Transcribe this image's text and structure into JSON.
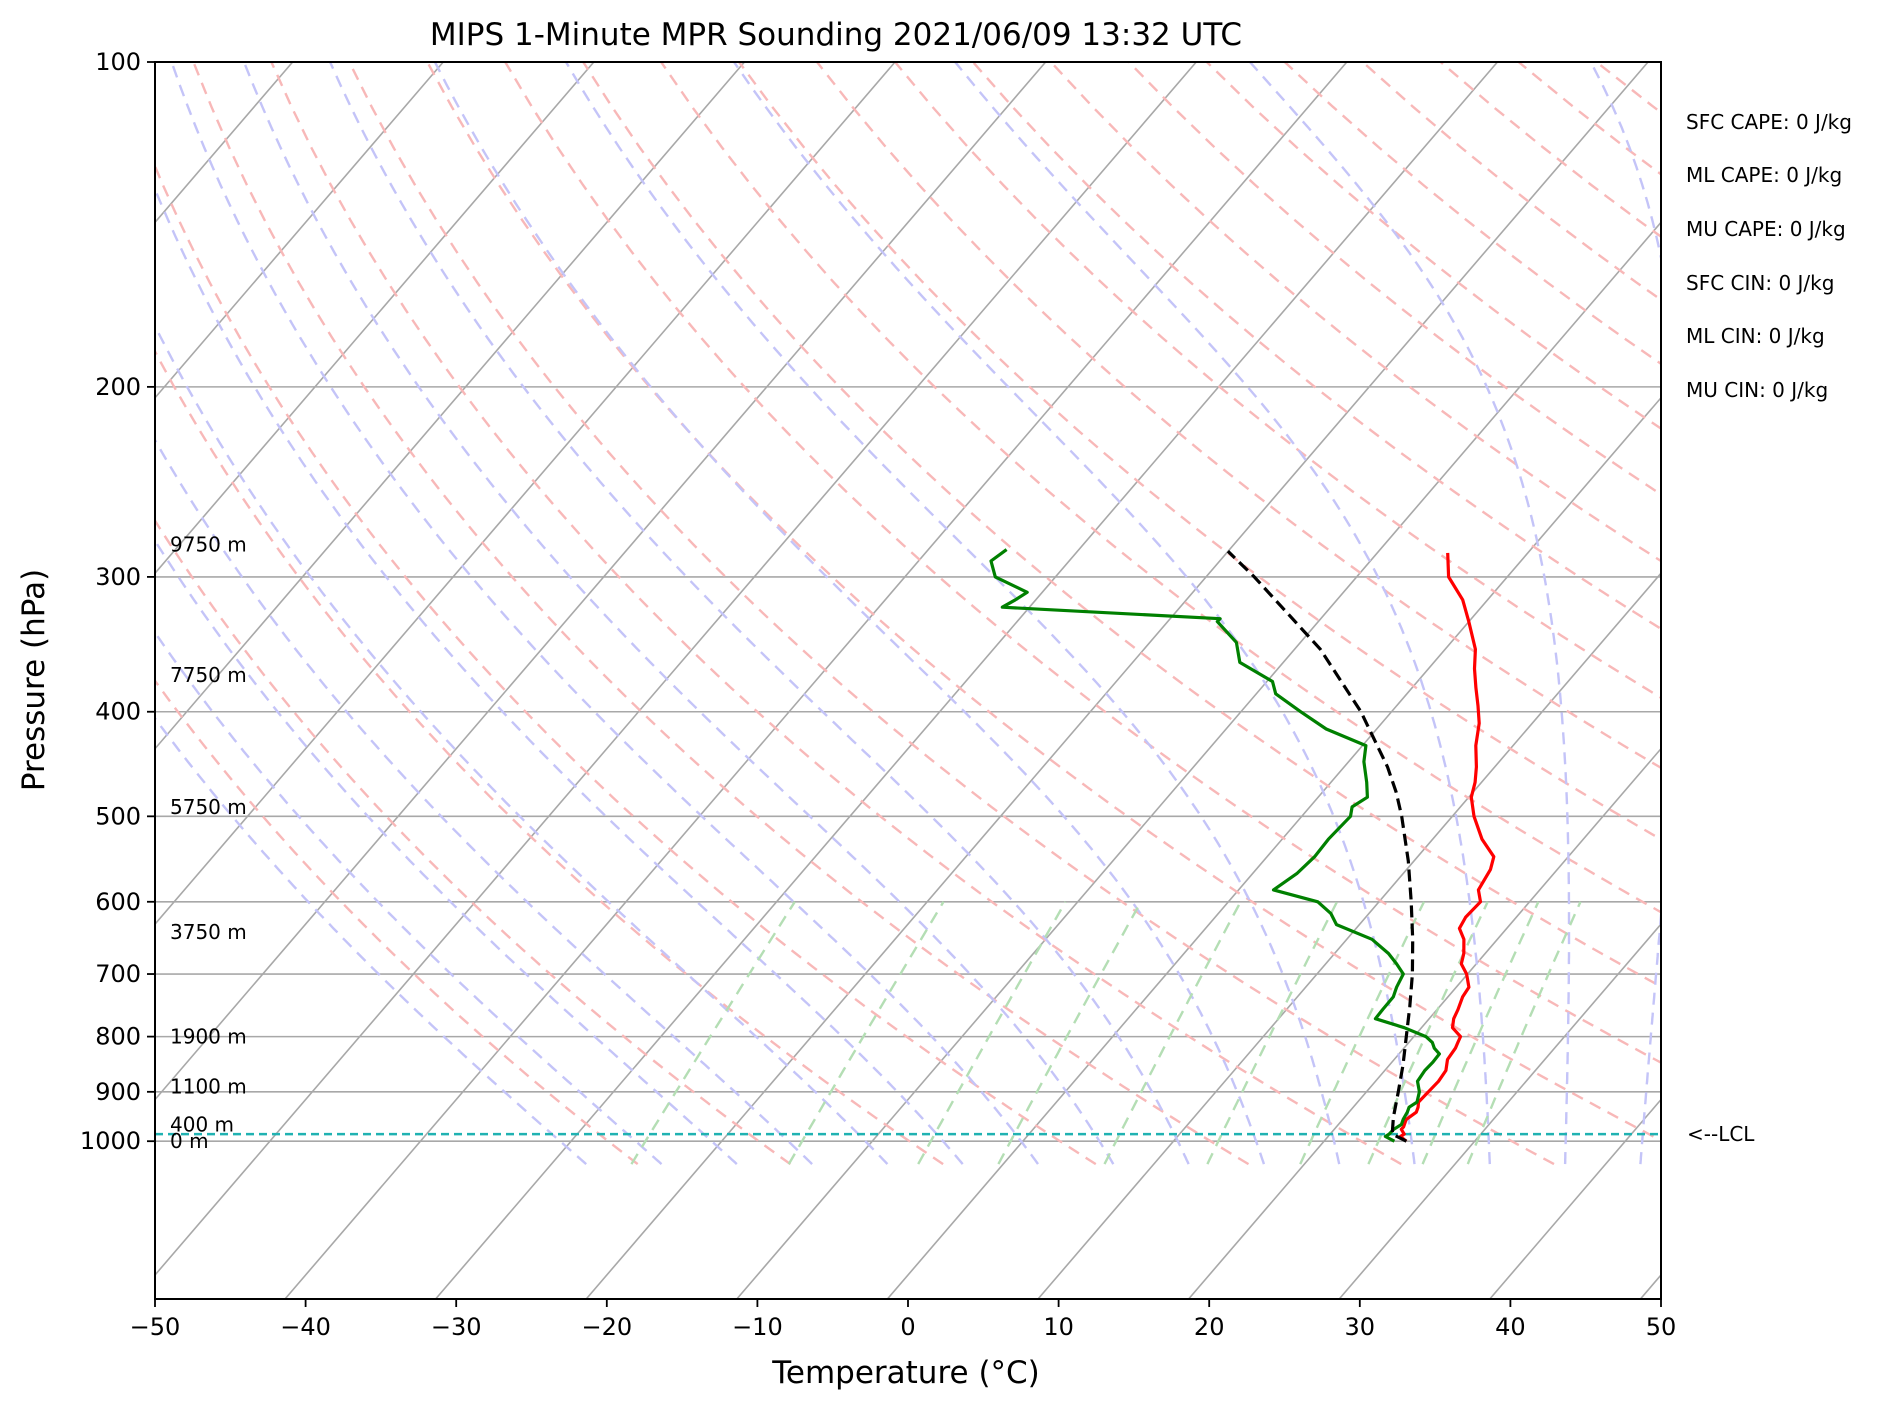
{
  "chart_data": {
    "type": "line",
    "title": "MIPS 1-Minute MPR Sounding 2021/06/09 13:32 UTC",
    "xlabel": "Temperature (°C)",
    "ylabel": "Pressure (hPa)",
    "xlim": [
      -50,
      50
    ],
    "ylim": [
      1050,
      100
    ],
    "y_scale": "log",
    "skew_t": true,
    "grid": true,
    "x_ticks": [
      "−50",
      "−40",
      "−30",
      "−20",
      "−10",
      "0",
      "10",
      "20",
      "30",
      "40",
      "50"
    ],
    "y_ticks": [
      "100",
      "200",
      "300",
      "400",
      "500",
      "600",
      "700",
      "800",
      "900",
      "1000"
    ],
    "height_labels": [
      {
        "p": 1000,
        "text": "0 m"
      },
      {
        "p": 965,
        "text": "400 m"
      },
      {
        "p": 890,
        "text": "1100 m"
      },
      {
        "p": 800,
        "text": "1900 m"
      },
      {
        "p": 640,
        "text": "3750 m"
      },
      {
        "p": 490,
        "text": "5750 m"
      },
      {
        "p": 370,
        "text": "7750 m"
      },
      {
        "p": 280,
        "text": "9750 m"
      }
    ],
    "series": [
      {
        "color": "#ff0000",
        "points": [
          [
            1000,
            23
          ],
          [
            990,
            22.3
          ],
          [
            985,
            22.4
          ],
          [
            975,
            21.9
          ],
          [
            970,
            21.9
          ],
          [
            965,
            21.8
          ],
          [
            955,
            21.6
          ],
          [
            940,
            21.8
          ],
          [
            930,
            21.6
          ],
          [
            920,
            21.3
          ],
          [
            900,
            21.3
          ],
          [
            880,
            21.3
          ],
          [
            860,
            21.1
          ],
          [
            840,
            20.5
          ],
          [
            820,
            20.3
          ],
          [
            810,
            20.1
          ],
          [
            800,
            19.9
          ],
          [
            785,
            18.8
          ],
          [
            770,
            18.3
          ],
          [
            755,
            18.0
          ],
          [
            735,
            17.5
          ],
          [
            720,
            17.3
          ],
          [
            700,
            16.3
          ],
          [
            685,
            15.3
          ],
          [
            670,
            14.8
          ],
          [
            650,
            13.9
          ],
          [
            635,
            12.9
          ],
          [
            620,
            12.6
          ],
          [
            600,
            12.6
          ],
          [
            585,
            11.7
          ],
          [
            560,
            11.2
          ],
          [
            545,
            10.6
          ],
          [
            525,
            8.7
          ],
          [
            500,
            6.7
          ],
          [
            480,
            5.3
          ],
          [
            465,
            4.6
          ],
          [
            450,
            3.7
          ],
          [
            430,
            2.3
          ],
          [
            410,
            1.1
          ],
          [
            395,
            -0.1
          ],
          [
            380,
            -1.4
          ],
          [
            365,
            -2.7
          ],
          [
            350,
            -3.9
          ],
          [
            330,
            -6.1
          ],
          [
            315,
            -7.9
          ],
          [
            300,
            -10.3
          ],
          [
            285,
            -11.9
          ]
        ]
      },
      {
        "color": "#008000",
        "points": [
          [
            1000,
            22.2
          ],
          [
            990,
            21.3
          ],
          [
            985,
            21.4
          ],
          [
            975,
            21.4
          ],
          [
            965,
            21.6
          ],
          [
            955,
            21.4
          ],
          [
            940,
            21.2
          ],
          [
            930,
            21.0
          ],
          [
            920,
            21.2
          ],
          [
            900,
            20.7
          ],
          [
            880,
            19.9
          ],
          [
            860,
            19.7
          ],
          [
            845,
            19.7
          ],
          [
            830,
            19.6
          ],
          [
            820,
            18.9
          ],
          [
            810,
            18.4
          ],
          [
            800,
            17.6
          ],
          [
            785,
            15.6
          ],
          [
            770,
            13.1
          ],
          [
            755,
            13.0
          ],
          [
            735,
            12.9
          ],
          [
            720,
            12.5
          ],
          [
            700,
            12.1
          ],
          [
            685,
            11.0
          ],
          [
            670,
            9.8
          ],
          [
            650,
            7.8
          ],
          [
            630,
            4.5
          ],
          [
            615,
            3.4
          ],
          [
            600,
            1.8
          ],
          [
            585,
            -1.9
          ],
          [
            565,
            -1.4
          ],
          [
            545,
            -1.3
          ],
          [
            525,
            -1.5
          ],
          [
            500,
            -1.5
          ],
          [
            490,
            -2.0
          ],
          [
            480,
            -1.6
          ],
          [
            465,
            -2.6
          ],
          [
            445,
            -4.1
          ],
          [
            430,
            -5.0
          ],
          [
            415,
            -8.7
          ],
          [
            400,
            -11.5
          ],
          [
            385,
            -14.3
          ],
          [
            375,
            -15.3
          ],
          [
            360,
            -18.7
          ],
          [
            345,
            -20.2
          ],
          [
            330,
            -22.8
          ],
          [
            328,
            -22.8
          ],
          [
            320,
            -38.0
          ],
          [
            315,
            -37.6
          ],
          [
            310,
            -37.3
          ],
          [
            300,
            -40.4
          ],
          [
            290,
            -41.7
          ],
          [
            283,
            -41.4
          ]
        ]
      },
      {
        "color": "#000000",
        "dashed": true,
        "points": [
          [
            1000,
            23.0
          ],
          [
            985,
            21.6
          ],
          [
            950,
            20.6
          ],
          [
            900,
            19.3
          ],
          [
            850,
            17.9
          ],
          [
            800,
            16.3
          ],
          [
            750,
            14.6
          ],
          [
            700,
            12.7
          ],
          [
            650,
            10.5
          ],
          [
            600,
            8.0
          ],
          [
            550,
            5.2
          ],
          [
            500,
            1.9
          ],
          [
            475,
            0.0
          ],
          [
            450,
            -2.2
          ],
          [
            400,
            -7.5
          ],
          [
            350,
            -14.2
          ],
          [
            300,
            -23.2
          ],
          [
            284,
            -26.6
          ]
        ]
      }
    ],
    "lcl": {
      "p": 985,
      "label": "<--LCL",
      "color": "#20b2b2"
    },
    "stats": [
      "SFC CAPE: 0 J/kg",
      "ML CAPE: 0 J/kg",
      "MU CAPE: 0 J/kg",
      "SFC CIN: 0 J/kg",
      "ML CIN: 0 J/kg",
      "MU CIN: 0 J/kg"
    ]
  }
}
